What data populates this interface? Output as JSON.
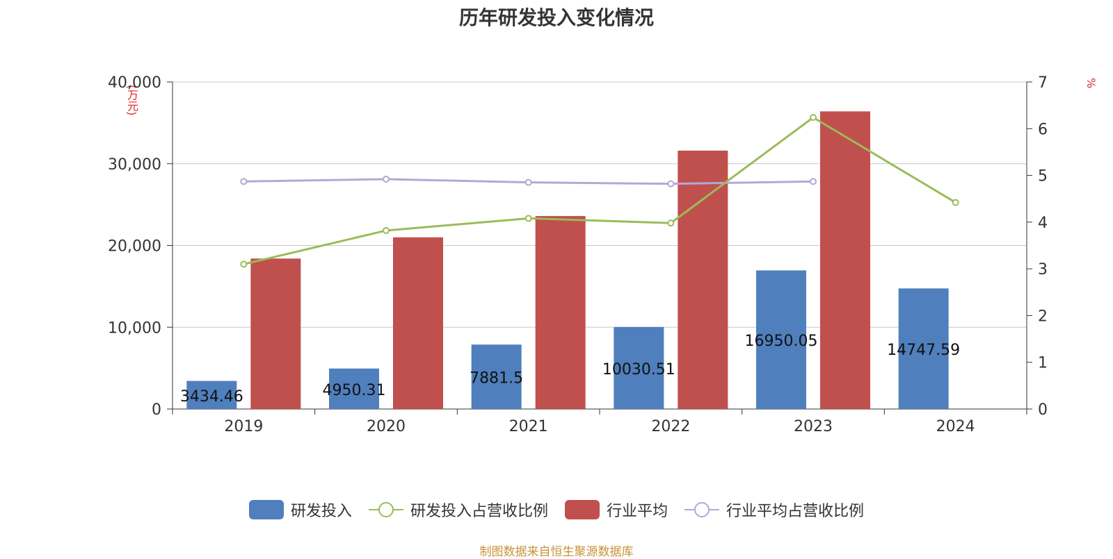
{
  "title": "历年研发投入变化情况",
  "unit_left": "(万元)",
  "unit_right": "%",
  "source": "制图数据来自恒生聚源数据库",
  "colors": {
    "rd_bar": "#4f7fbd",
    "industry_bar": "#c0504d",
    "rd_ratio_line": "#9bbb59",
    "industry_ratio_line": "#b4a7d6",
    "grid": "#c8c8c8",
    "axis": "#333333"
  },
  "chart_data": {
    "type": "bar",
    "categories": [
      "2019",
      "2020",
      "2021",
      "2022",
      "2023",
      "2024"
    ],
    "y_left": {
      "min": 0,
      "max": 40000,
      "ticks": [
        0,
        10000,
        20000,
        30000,
        40000
      ],
      "tick_labels": [
        "0",
        "10,000",
        "20,000",
        "30,000",
        "40,000"
      ]
    },
    "y_right": {
      "min": 0,
      "max": 7,
      "ticks": [
        0,
        1,
        2,
        3,
        4,
        5,
        6,
        7
      ],
      "tick_labels": [
        "0",
        "1",
        "2",
        "3",
        "4",
        "5",
        "6",
        "7"
      ]
    },
    "grid": true,
    "legend_position": "bottom",
    "series": [
      {
        "name": "研发投入",
        "type": "bar",
        "axis": "left",
        "color": "#4f7fbd",
        "values": [
          3434.46,
          4950.31,
          7881.5,
          10030.51,
          16950.05,
          14747.59
        ],
        "labels": [
          "3434.46",
          "4950.31",
          "7881.5",
          "10030.51",
          "16950.05",
          "14747.59"
        ]
      },
      {
        "name": "研发投入占营收比例",
        "type": "line",
        "axis": "right",
        "color": "#9bbb59",
        "values": [
          3.1,
          3.82,
          4.08,
          3.98,
          6.24,
          4.42
        ]
      },
      {
        "name": "行业平均",
        "type": "bar",
        "axis": "left",
        "color": "#c0504d",
        "values": [
          18400,
          21000,
          23600,
          31600,
          36400,
          null
        ]
      },
      {
        "name": "行业平均占营收比例",
        "type": "line",
        "axis": "right",
        "color": "#b4a7d6",
        "values": [
          4.87,
          4.92,
          4.85,
          4.82,
          4.87,
          null
        ]
      }
    ]
  }
}
